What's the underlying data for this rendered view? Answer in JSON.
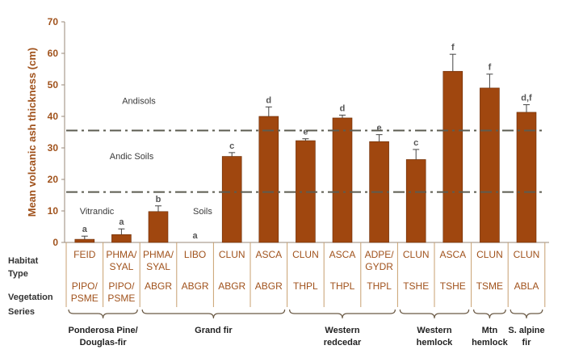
{
  "chart_data": {
    "type": "bar",
    "ylabel": "Mean volcanic ash thickness (cm)",
    "ylim": [
      0,
      70
    ],
    "yticks": [
      0,
      10,
      20,
      30,
      40,
      50,
      60,
      70
    ],
    "reference_lines": [
      16,
      35.5
    ],
    "categories": [
      "FEID",
      "PHMA/SYAL",
      "PHMA/SYAL",
      "LIBO",
      "CLUN",
      "ASCA",
      "CLUN",
      "ASCA",
      "ADPE/GYDR",
      "CLUN",
      "ASCA",
      "CLUN",
      "CLUN"
    ],
    "values": [
      1,
      2.5,
      9.8,
      0,
      27.3,
      40,
      32.3,
      39.5,
      32,
      26.3,
      54.3,
      49,
      41.3
    ],
    "errors": [
      1,
      1.8,
      1.8,
      0,
      1.2,
      3,
      0.6,
      0.9,
      2.2,
      3.2,
      5.4,
      4.4,
      2.4
    ],
    "significance": [
      "a",
      "a",
      "b",
      "a",
      "c",
      "d",
      "e",
      "d",
      "e",
      "c",
      "f",
      "f",
      "d,f"
    ],
    "bar_color": "#a0470f",
    "zone_labels": [
      {
        "text": "Andisols",
        "y": 45
      },
      {
        "text": "Andic Soils",
        "y": 27.5
      },
      {
        "text": "Vitrandic",
        "y": 10
      },
      {
        "text": "Soils",
        "y": 10
      }
    ]
  },
  "table": {
    "row_labels": [
      [
        "Habitat",
        "Type"
      ],
      [
        "Vegetation",
        "Series"
      ]
    ],
    "habitat_type": [
      [
        "FEID"
      ],
      [
        "PHMA/",
        "SYAL"
      ],
      [
        "PHMA/",
        "SYAL"
      ],
      [
        "LIBO"
      ],
      [
        "CLUN"
      ],
      [
        "ASCA"
      ],
      [
        "CLUN"
      ],
      [
        "ASCA"
      ],
      [
        "ADPE/",
        "GYDR"
      ],
      [
        "CLUN"
      ],
      [
        "ASCA"
      ],
      [
        "CLUN"
      ],
      [
        "CLUN"
      ]
    ],
    "vegetation_code": [
      [
        "PIPO/",
        "PSME"
      ],
      [
        "PIPO/",
        "PSME"
      ],
      [
        "ABGR"
      ],
      [
        "ABGR"
      ],
      [
        "ABGR"
      ],
      [
        "ABGR"
      ],
      [
        "THPL"
      ],
      [
        "THPL"
      ],
      [
        "THPL"
      ],
      [
        "TSHE"
      ],
      [
        "TSHE"
      ],
      [
        "TSME"
      ],
      [
        "ABLA"
      ]
    ]
  },
  "groups": [
    {
      "label": [
        "Ponderosa Pine/",
        "Douglas-fir"
      ],
      "from": 0,
      "to": 1
    },
    {
      "label": [
        "Grand fir"
      ],
      "from": 2,
      "to": 5
    },
    {
      "label": [
        "Western",
        "redcedar"
      ],
      "from": 6,
      "to": 8
    },
    {
      "label": [
        "Western",
        "hemlock"
      ],
      "from": 9,
      "to": 10
    },
    {
      "label": [
        "Mtn",
        "hemlock"
      ],
      "from": 11,
      "to": 11
    },
    {
      "label": [
        "S. alpine",
        "fir"
      ],
      "from": 12,
      "to": 12
    }
  ]
}
